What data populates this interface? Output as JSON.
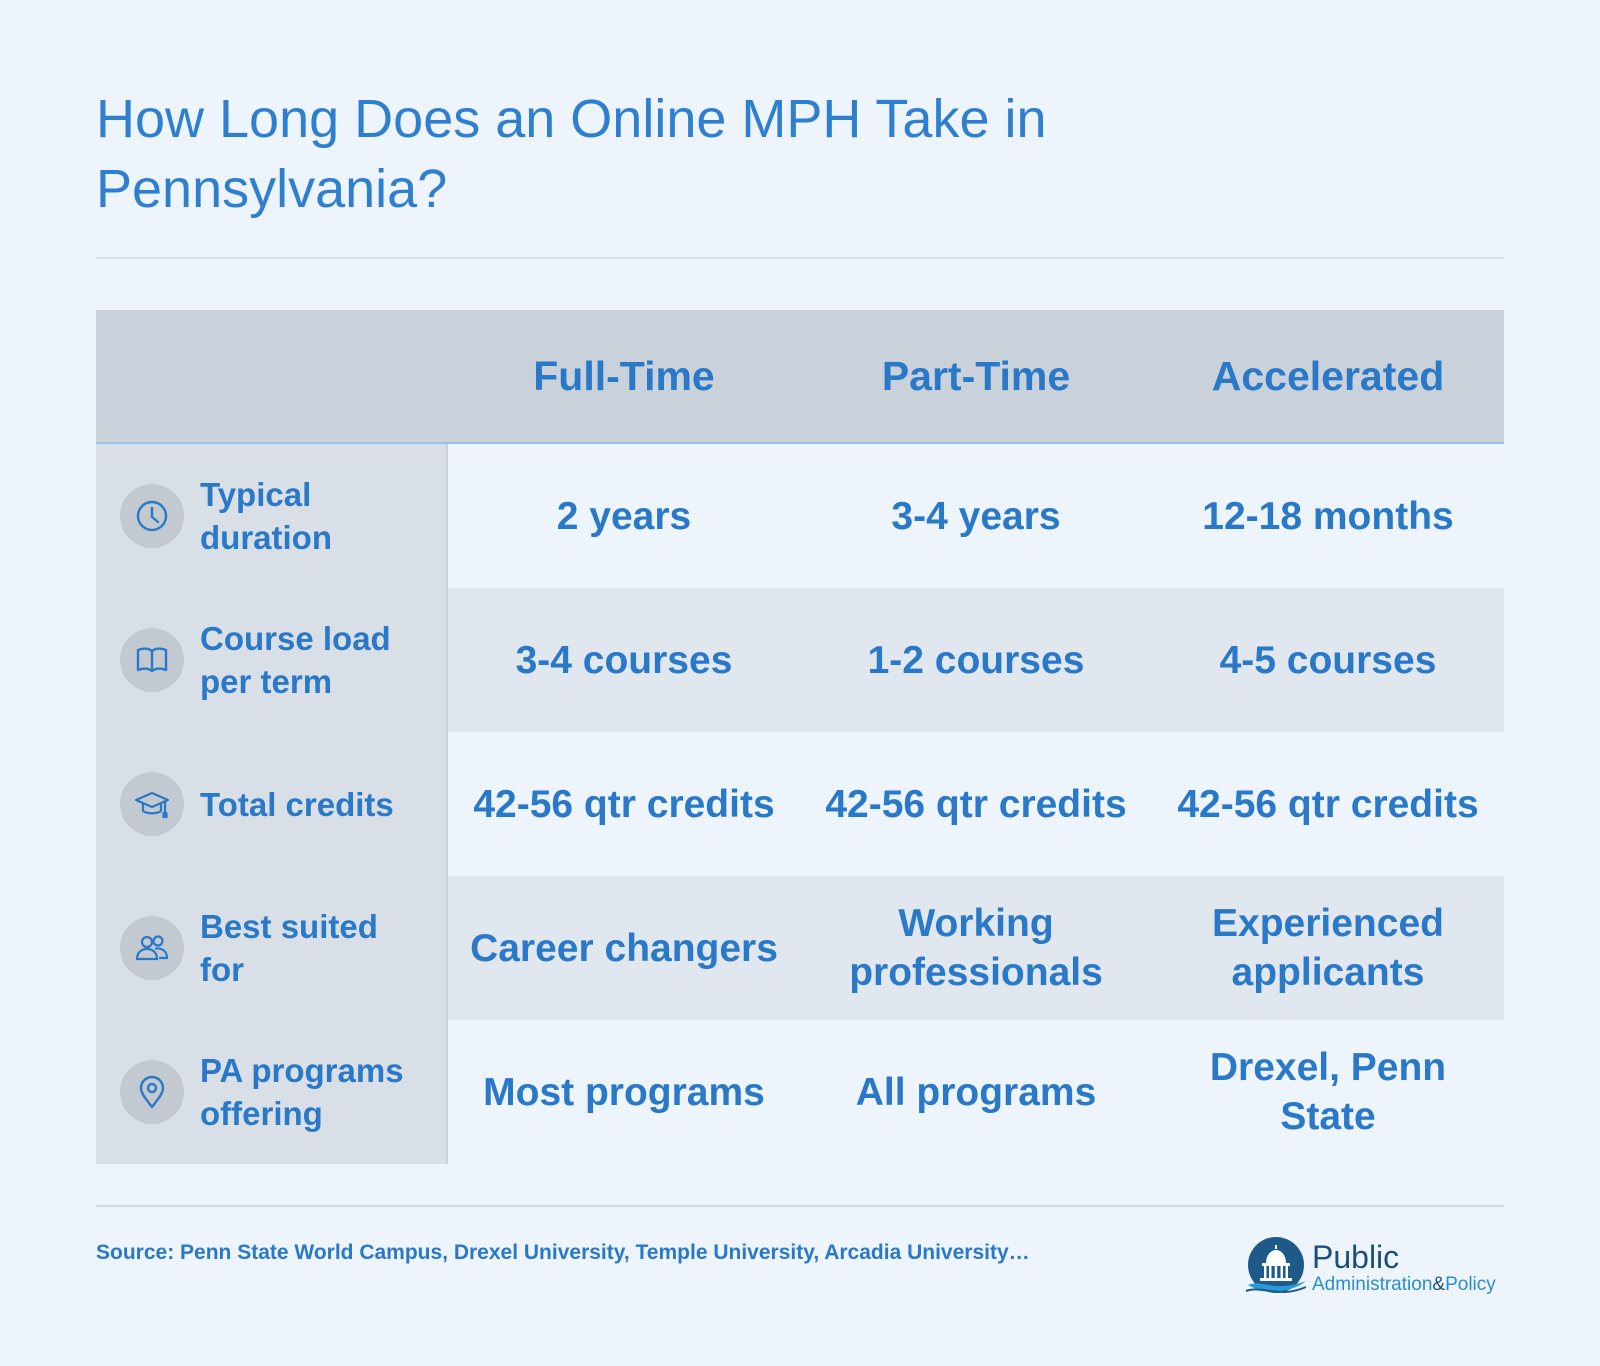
{
  "title": "How Long Does an Online MPH Take in Pennsylvania?",
  "table": {
    "columns": [
      "Full-Time",
      "Part-Time",
      "Accelerated"
    ],
    "rows": [
      {
        "label": "Typical duration",
        "icon": "clock-icon",
        "cells": [
          "2 years",
          "3-4 years",
          "12-18 months"
        ]
      },
      {
        "label": "Course load per term",
        "icon": "book-icon",
        "cells": [
          "3-4 courses",
          "1-2 courses",
          "4-5 courses"
        ]
      },
      {
        "label": "Total credits",
        "icon": "graduation-cap-icon",
        "cells": [
          "42-56 qtr credits",
          "42-56 qtr credits",
          "42-56 qtr credits"
        ]
      },
      {
        "label": "Best suited for",
        "icon": "people-icon",
        "cells": [
          "Career changers",
          "Working professionals",
          "Experienced applicants"
        ]
      },
      {
        "label": "PA programs offering",
        "icon": "location-pin-icon",
        "cells": [
          "Most programs",
          "All programs",
          "Drexel, Penn State"
        ]
      }
    ]
  },
  "source": "Source: Penn State World Campus, Drexel University, Temple University, Arcadia University…",
  "logo": {
    "line1": "Public",
    "line2_a": "Administration",
    "line2_amp": "&",
    "line2_b": "Policy"
  },
  "colors": {
    "background": "#eef4fb",
    "accent_text": "#2a78c8",
    "header_band": "#c9d1da",
    "label_column": "#d9dfe6",
    "stripe_dark": "#e1e7ee"
  }
}
